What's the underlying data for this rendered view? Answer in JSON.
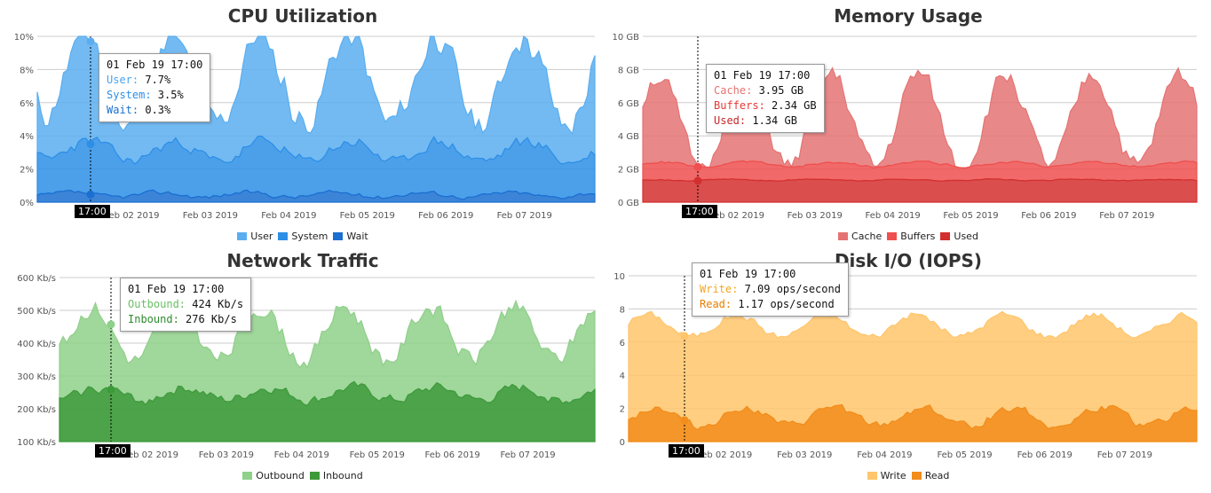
{
  "chart_data": [
    {
      "type": "area",
      "title": "CPU Utilization",
      "ylim": [
        0,
        10
      ],
      "yticks": [
        "0%",
        "2%",
        "4%",
        "6%",
        "8%",
        "10%"
      ],
      "xticks": [
        "Feb 02 2019",
        "Feb 03 2019",
        "Feb 04 2019",
        "Feb 05 2019",
        "Feb 06 2019",
        "Feb 07 2019"
      ],
      "x_start": "2019-02-01 12:00",
      "x_end": "2019-02-08 03:00",
      "stacked": true,
      "grid": true,
      "legend_placement": "bottom",
      "series": [
        {
          "name": "User",
          "color": "#5aaef0",
          "base": 4.3,
          "amp": 2.3,
          "noise": 1.4,
          "seed": 11
        },
        {
          "name": "System",
          "color": "#2d8fe6",
          "base": 2.6,
          "amp": 0.6,
          "noise": 0.5,
          "seed": 23
        },
        {
          "name": "Wait",
          "color": "#1a6fd0",
          "base": 0.45,
          "amp": 0.15,
          "noise": 0.2,
          "seed": 37
        }
      ],
      "tooltip": {
        "time": "01 Feb 19 17:00",
        "rows": [
          {
            "label": "User:",
            "value": "7.7%",
            "color": "#4aa3ee"
          },
          {
            "label": "System:",
            "value": "3.5%",
            "color": "#2d8fe6"
          },
          {
            "label": "Wait:",
            "value": "0.3%",
            "color": "#1a6fd0"
          }
        ]
      },
      "cursor_label": "17:00"
    },
    {
      "type": "area",
      "title": "Memory Usage",
      "ylim": [
        0,
        10
      ],
      "yticks": [
        "0 GB",
        "2 GB",
        "4 GB",
        "6 GB",
        "8 GB",
        "10 GB"
      ],
      "xticks": [
        "Feb 02 2019",
        "Feb 03 2019",
        "Feb 04 2019",
        "Feb 05 2019",
        "Feb 06 2019",
        "Feb 07 2019"
      ],
      "x_start": "2019-02-01 12:00",
      "x_end": "2019-02-08 03:00",
      "stacked": true,
      "grid": true,
      "legend_placement": "bottom",
      "series": [
        {
          "name": "Cache",
          "color": "#e57373",
          "base": 2.6,
          "amp": 2.8,
          "noise": 1.0,
          "seed": 51
        },
        {
          "name": "Buffers",
          "color": "#ef4f4f",
          "base": 0.95,
          "amp": 0.15,
          "noise": 0.1,
          "seed": 63
        },
        {
          "name": "Used",
          "color": "#d32f2f",
          "base": 1.34,
          "amp": 0.05,
          "noise": 0.05,
          "seed": 71
        }
      ],
      "tooltip": {
        "time": "01 Feb 19 17:00",
        "rows": [
          {
            "label": "Cache:",
            "value": "3.95 GB",
            "color": "#e57373"
          },
          {
            "label": "Buffers:",
            "value": "2.34 GB",
            "color": "#e53935"
          },
          {
            "label": "Used:",
            "value": "1.34 GB",
            "color": "#c62828"
          }
        ]
      },
      "cursor_label": "17:00"
    },
    {
      "type": "area",
      "title": "Network Traffic",
      "ylim": [
        100,
        600
      ],
      "yticks": [
        "100 Kb/s",
        "200 Kb/s",
        "300 Kb/s",
        "400 Kb/s",
        "500 Kb/s",
        "600 Kb/s"
      ],
      "xticks": [
        "Feb 02 2019",
        "Feb 03 2019",
        "Feb 04 2019",
        "Feb 05 2019",
        "Feb 06 2019",
        "Feb 07 2019"
      ],
      "x_start": "2019-02-01 12:00",
      "x_end": "2019-02-08 03:00",
      "stacked": false,
      "grid": true,
      "legend_placement": "bottom",
      "series": [
        {
          "name": "Outbound",
          "color": "#8fd08a",
          "base": 430,
          "amp": 85,
          "noise": 45,
          "seed": 81
        },
        {
          "name": "Inbound",
          "color": "#3d9a3b",
          "base": 245,
          "amp": 20,
          "noise": 25,
          "seed": 93
        }
      ],
      "tooltip": {
        "time": "01 Feb 19 17:00",
        "rows": [
          {
            "label": "Outbound:",
            "value": "424 Kb/s",
            "color": "#6bbf66"
          },
          {
            "label": "Inbound:",
            "value": "276 Kb/s",
            "color": "#2e8b2e"
          }
        ]
      },
      "cursor_label": "17:00"
    },
    {
      "type": "area",
      "title": "Disk I/O (IOPS)",
      "ylim": [
        0,
        10
      ],
      "yticks": [
        "0",
        "2",
        "4",
        "6",
        "8",
        "10"
      ],
      "xticks": [
        "Feb 02 2019",
        "Feb 03 2019",
        "Feb 04 2019",
        "Feb 05 2019",
        "Feb 06 2019",
        "Feb 07 2019"
      ],
      "x_start": "2019-02-01 12:00",
      "x_end": "2019-02-08 03:00",
      "stacked": false,
      "grid": true,
      "legend_placement": "bottom",
      "series": [
        {
          "name": "Write",
          "color": "#ffc56b",
          "base": 7.0,
          "amp": 0.7,
          "noise": 0.35,
          "seed": 101
        },
        {
          "name": "Read",
          "color": "#f28c1a",
          "base": 1.5,
          "amp": 0.6,
          "noise": 0.4,
          "seed": 113
        }
      ],
      "tooltip": {
        "time": "01 Feb 19 17:00",
        "rows": [
          {
            "label": "Write:",
            "value": "7.09 ops/second",
            "color": "#f5a623"
          },
          {
            "label": "Read:",
            "value": "1.17 ops/second",
            "color": "#e67e00"
          }
        ]
      },
      "cursor_label": "17:00"
    }
  ]
}
